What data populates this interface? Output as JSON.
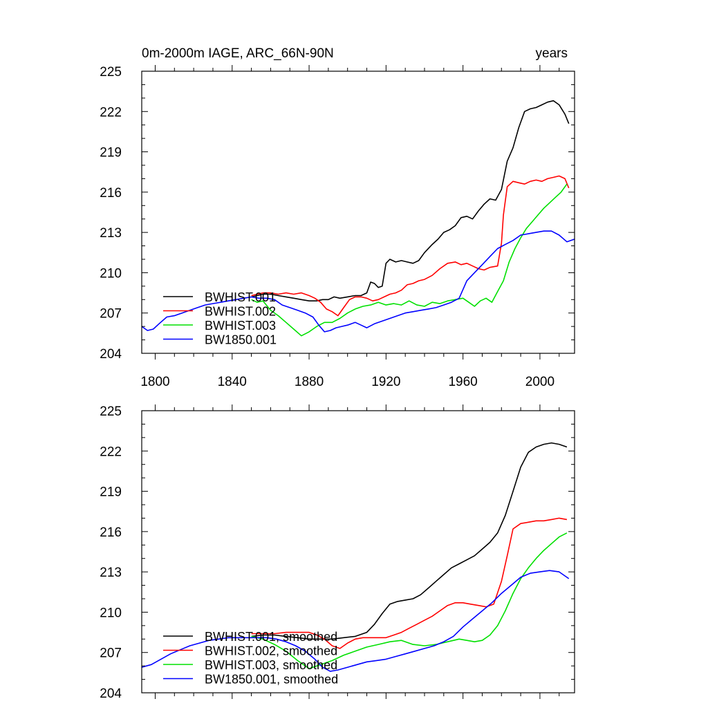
{
  "chart_data": [
    {
      "type": "line",
      "title_left": "0m-2000m IAGE, ARC_66N-90N",
      "title_right": "years",
      "xlim": [
        1793,
        2018
      ],
      "ylim": [
        204,
        225
      ],
      "xticks": [
        1800,
        1840,
        1880,
        1920,
        1960,
        2000
      ],
      "yticks": [
        204,
        207,
        210,
        213,
        216,
        219,
        222,
        225
      ],
      "show_xtick_labels": true,
      "series": [
        {
          "name": "BWHIST.001",
          "color": "#000000",
          "x": [
            1850,
            1853,
            1856,
            1860,
            1864,
            1868,
            1872,
            1876,
            1880,
            1884,
            1887,
            1890,
            1893,
            1896,
            1900,
            1904,
            1907,
            1910,
            1912,
            1914,
            1916,
            1918,
            1920,
            1922,
            1925,
            1928,
            1931,
            1934,
            1937,
            1940,
            1944,
            1947,
            1950,
            1953,
            1956,
            1959,
            1962,
            1965,
            1968,
            1971,
            1974,
            1977,
            1980,
            1983,
            1986,
            1989,
            1992,
            1995,
            1998,
            2001,
            2004,
            2007,
            2010,
            2013,
            2015
          ],
          "y": [
            208.2,
            208.3,
            208.4,
            208.4,
            208.3,
            208.2,
            208.1,
            208.0,
            207.9,
            207.9,
            208.0,
            208.0,
            208.2,
            208.1,
            208.2,
            208.3,
            208.3,
            208.5,
            209.3,
            209.2,
            208.9,
            209.0,
            210.7,
            211.0,
            210.8,
            210.9,
            210.8,
            210.7,
            210.9,
            211.5,
            212.1,
            212.5,
            213.0,
            213.2,
            213.5,
            214.1,
            214.2,
            214.0,
            214.6,
            215.1,
            215.5,
            215.4,
            216.2,
            218.3,
            219.3,
            220.8,
            222.0,
            222.2,
            222.3,
            222.5,
            222.7,
            222.8,
            222.5,
            221.8,
            221.1
          ]
        },
        {
          "name": "BWHIST.002",
          "color": "#ff0000",
          "x": [
            1850,
            1853,
            1856,
            1860,
            1864,
            1868,
            1872,
            1876,
            1880,
            1883,
            1886,
            1889,
            1892,
            1895,
            1898,
            1901,
            1904,
            1907,
            1910,
            1913,
            1916,
            1919,
            1922,
            1925,
            1928,
            1931,
            1934,
            1937,
            1940,
            1944,
            1948,
            1952,
            1956,
            1959,
            1962,
            1965,
            1968,
            1971,
            1974,
            1978,
            1980,
            1981,
            1983,
            1986,
            1989,
            1992,
            1995,
            1998,
            2001,
            2004,
            2007,
            2010,
            2013,
            2015
          ],
          "y": [
            208.3,
            208.4,
            208.5,
            208.5,
            208.4,
            208.5,
            208.4,
            208.5,
            208.3,
            208.1,
            207.8,
            207.3,
            207.1,
            206.8,
            207.4,
            208.0,
            208.2,
            208.2,
            208.1,
            207.9,
            208.0,
            208.2,
            208.4,
            208.5,
            208.7,
            209.1,
            209.2,
            209.4,
            209.5,
            209.8,
            210.3,
            210.7,
            210.8,
            210.6,
            210.7,
            210.5,
            210.3,
            210.2,
            210.4,
            210.5,
            212.2,
            214.3,
            216.4,
            216.8,
            216.7,
            216.6,
            216.8,
            216.9,
            216.8,
            217.0,
            217.1,
            217.2,
            217.0,
            216.3
          ]
        },
        {
          "name": "BWHIST.003",
          "color": "#00e000",
          "x": [
            1850,
            1853,
            1856,
            1860,
            1864,
            1868,
            1872,
            1876,
            1880,
            1884,
            1888,
            1892,
            1896,
            1900,
            1904,
            1908,
            1912,
            1916,
            1920,
            1924,
            1928,
            1932,
            1936,
            1940,
            1944,
            1948,
            1952,
            1956,
            1960,
            1963,
            1966,
            1969,
            1972,
            1975,
            1978,
            1981,
            1984,
            1987,
            1990,
            1993,
            1996,
            1999,
            2002,
            2005,
            2008,
            2011,
            2014
          ],
          "y": [
            208.0,
            207.8,
            207.9,
            207.2,
            206.8,
            206.3,
            205.8,
            205.3,
            205.6,
            206.0,
            206.3,
            206.3,
            206.6,
            207.0,
            207.3,
            207.5,
            207.6,
            207.8,
            207.6,
            207.7,
            207.6,
            207.9,
            207.6,
            207.5,
            207.8,
            207.7,
            207.9,
            208.0,
            208.1,
            207.8,
            207.5,
            207.9,
            208.1,
            207.8,
            208.6,
            209.4,
            210.8,
            211.8,
            212.6,
            213.3,
            213.8,
            214.3,
            214.8,
            215.2,
            215.6,
            216.0,
            216.6
          ]
        },
        {
          "name": "BW1850.001",
          "color": "#0000ff",
          "x": [
            1793,
            1796,
            1799,
            1802,
            1806,
            1810,
            1814,
            1818,
            1822,
            1826,
            1830,
            1834,
            1838,
            1842,
            1846,
            1850,
            1854,
            1858,
            1862,
            1866,
            1870,
            1874,
            1878,
            1882,
            1885,
            1888,
            1891,
            1894,
            1897,
            1900,
            1904,
            1907,
            1910,
            1914,
            1918,
            1922,
            1926,
            1930,
            1934,
            1938,
            1942,
            1946,
            1950,
            1954,
            1958,
            1962,
            1966,
            1970,
            1974,
            1978,
            1982,
            1986,
            1990,
            1994,
            1998,
            2002,
            2006,
            2010,
            2014,
            2018
          ],
          "y": [
            206.0,
            205.7,
            205.8,
            206.2,
            206.7,
            206.8,
            207.0,
            207.2,
            207.4,
            207.6,
            207.7,
            207.8,
            207.9,
            208.0,
            208.1,
            208.2,
            208.1,
            208.1,
            208.0,
            207.6,
            207.4,
            207.2,
            207.0,
            206.7,
            206.1,
            205.6,
            205.7,
            205.9,
            206.0,
            206.1,
            206.3,
            206.1,
            205.9,
            206.2,
            206.4,
            206.6,
            206.8,
            207.0,
            207.1,
            207.2,
            207.3,
            207.4,
            207.6,
            207.8,
            208.1,
            209.4,
            210.0,
            210.6,
            211.2,
            211.8,
            212.1,
            212.4,
            212.8,
            212.9,
            213.0,
            213.1,
            213.1,
            212.8,
            212.3,
            212.5
          ]
        }
      ]
    },
    {
      "type": "line",
      "title_left": "",
      "title_right": "",
      "xlim": [
        1793,
        2018
      ],
      "ylim": [
        204,
        225
      ],
      "xticks": [
        1800,
        1840,
        1880,
        1920,
        1960,
        2000
      ],
      "yticks": [
        204,
        207,
        210,
        213,
        216,
        219,
        222,
        225
      ],
      "show_xtick_labels": false,
      "series": [
        {
          "name": "BWHIST.001, smoothed",
          "color": "#000000",
          "x": [
            1850,
            1856,
            1862,
            1868,
            1874,
            1880,
            1886,
            1892,
            1898,
            1904,
            1910,
            1914,
            1918,
            1922,
            1926,
            1930,
            1934,
            1938,
            1942,
            1946,
            1950,
            1954,
            1958,
            1962,
            1966,
            1970,
            1974,
            1978,
            1982,
            1986,
            1990,
            1994,
            1998,
            2002,
            2006,
            2010,
            2014
          ],
          "y": [
            208.2,
            208.3,
            208.3,
            208.2,
            208.1,
            208.0,
            208.0,
            208.0,
            208.1,
            208.2,
            208.5,
            209.1,
            209.9,
            210.6,
            210.8,
            210.9,
            211.0,
            211.3,
            211.8,
            212.3,
            212.8,
            213.3,
            213.6,
            213.9,
            214.2,
            214.7,
            215.2,
            215.9,
            217.2,
            219.0,
            220.8,
            221.9,
            222.3,
            222.5,
            222.6,
            222.5,
            222.3
          ]
        },
        {
          "name": "BWHIST.002, smoothed",
          "color": "#ff0000",
          "x": [
            1850,
            1856,
            1862,
            1868,
            1874,
            1880,
            1884,
            1888,
            1892,
            1896,
            1900,
            1904,
            1908,
            1912,
            1916,
            1920,
            1924,
            1928,
            1932,
            1936,
            1940,
            1944,
            1948,
            1952,
            1956,
            1960,
            1964,
            1968,
            1972,
            1976,
            1980,
            1983,
            1986,
            1990,
            1994,
            1998,
            2002,
            2006,
            2010,
            2014
          ],
          "y": [
            208.4,
            208.4,
            208.4,
            208.5,
            208.5,
            208.5,
            208.3,
            208.0,
            207.5,
            207.3,
            207.7,
            208.0,
            208.1,
            208.1,
            208.1,
            208.1,
            208.3,
            208.5,
            208.8,
            209.1,
            209.4,
            209.7,
            210.1,
            210.5,
            210.7,
            210.7,
            210.6,
            210.5,
            210.4,
            210.6,
            212.3,
            214.2,
            216.2,
            216.6,
            216.7,
            216.8,
            216.8,
            216.9,
            217.0,
            216.9
          ]
        },
        {
          "name": "BWHIST.003, smoothed",
          "color": "#00e000",
          "x": [
            1850,
            1856,
            1862,
            1868,
            1874,
            1880,
            1886,
            1892,
            1898,
            1904,
            1910,
            1916,
            1922,
            1928,
            1934,
            1940,
            1946,
            1952,
            1958,
            1962,
            1966,
            1970,
            1974,
            1978,
            1982,
            1986,
            1990,
            1994,
            1998,
            2002,
            2006,
            2010,
            2014
          ],
          "y": [
            208.2,
            208.0,
            207.6,
            207.1,
            206.4,
            205.8,
            206.1,
            206.4,
            206.8,
            207.1,
            207.4,
            207.6,
            207.8,
            207.9,
            207.6,
            207.5,
            207.6,
            207.8,
            208.0,
            207.9,
            207.8,
            207.9,
            208.3,
            209.0,
            210.1,
            211.4,
            212.5,
            213.3,
            214.0,
            214.6,
            215.1,
            215.6,
            215.9
          ]
        },
        {
          "name": "BW1850.001, smoothed",
          "color": "#0000ff",
          "x": [
            1793,
            1798,
            1803,
            1808,
            1813,
            1818,
            1823,
            1828,
            1833,
            1838,
            1843,
            1848,
            1853,
            1858,
            1863,
            1868,
            1873,
            1878,
            1883,
            1887,
            1891,
            1895,
            1900,
            1905,
            1910,
            1915,
            1920,
            1925,
            1930,
            1935,
            1940,
            1945,
            1950,
            1955,
            1960,
            1965,
            1970,
            1975,
            1980,
            1985,
            1990,
            1995,
            2000,
            2005,
            2010,
            2015
          ],
          "y": [
            205.9,
            206.1,
            206.5,
            206.9,
            207.2,
            207.5,
            207.7,
            207.9,
            208.0,
            208.1,
            208.1,
            208.1,
            208.1,
            208.1,
            208.0,
            207.8,
            207.5,
            207.1,
            206.5,
            205.9,
            205.6,
            205.7,
            205.9,
            206.1,
            206.3,
            206.4,
            206.5,
            206.7,
            206.9,
            207.1,
            207.3,
            207.5,
            207.8,
            208.2,
            208.9,
            209.5,
            210.1,
            210.7,
            211.4,
            212.0,
            212.6,
            212.9,
            213.0,
            213.1,
            213.0,
            212.5
          ]
        }
      ]
    }
  ]
}
